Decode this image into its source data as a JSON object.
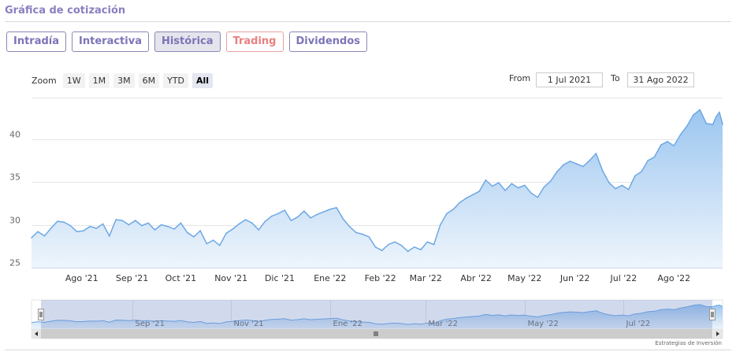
{
  "header": {
    "title": "Gráfica de cotización"
  },
  "tabs": [
    {
      "label": "Intradía"
    },
    {
      "label": "Interactiva"
    },
    {
      "label": "Histórica",
      "active": true
    },
    {
      "label": "Trading"
    },
    {
      "label": "Dividendos"
    }
  ],
  "zoom": {
    "label": "Zoom",
    "buttons": [
      "1W",
      "1M",
      "3M",
      "6M",
      "YTD",
      "All"
    ],
    "selected": "All"
  },
  "range": {
    "from_label": "From",
    "from_value": "1 Jul 2021",
    "to_label": "To",
    "to_value": "31 Ago 2022"
  },
  "colors": {
    "line": "#6ea8e4",
    "fill_top": "#9cc6f0",
    "fill_bottom": "#eef5fc",
    "navigator_mask": "rgba(102,133,194,0.3)"
  },
  "credit": "Estrategias de Inversión",
  "chart_data": {
    "type": "area",
    "title": "",
    "xlabel": "",
    "ylabel": "",
    "ylim": [
      25,
      44
    ],
    "yticks": [
      25,
      30,
      35,
      40
    ],
    "x_range": [
      "2021-07-01",
      "2022-08-31"
    ],
    "month_ticks": [
      {
        "label": "Ago '21",
        "date": "2021-08-01"
      },
      {
        "label": "Sep '21",
        "date": "2021-09-01"
      },
      {
        "label": "Oct '21",
        "date": "2021-10-01"
      },
      {
        "label": "Nov '21",
        "date": "2021-11-01"
      },
      {
        "label": "Dic '21",
        "date": "2021-12-01"
      },
      {
        "label": "Ene '22",
        "date": "2022-01-01"
      },
      {
        "label": "Feb '22",
        "date": "2022-02-01"
      },
      {
        "label": "Mar '22",
        "date": "2022-03-01"
      },
      {
        "label": "Abr '22",
        "date": "2022-04-01"
      },
      {
        "label": "May '22",
        "date": "2022-05-01"
      },
      {
        "label": "Jun '22",
        "date": "2022-06-01"
      },
      {
        "label": "Jul '22",
        "date": "2022-07-01"
      },
      {
        "label": "Ago '22",
        "date": "2022-08-01"
      }
    ],
    "navigator_ticks": [
      {
        "label": "Sep '21",
        "date": "2021-09-01"
      },
      {
        "label": "Nov '21",
        "date": "2021-11-01"
      },
      {
        "label": "Ene '22",
        "date": "2022-01-01"
      },
      {
        "label": "Mar '22",
        "date": "2022-03-01"
      },
      {
        "label": "May '22",
        "date": "2022-05-01"
      },
      {
        "label": "Jul '22",
        "date": "2022-07-01"
      }
    ],
    "series": [
      {
        "points": [
          [
            "2021-07-01",
            28.5
          ],
          [
            "2021-07-05",
            29.2
          ],
          [
            "2021-07-09",
            28.7
          ],
          [
            "2021-07-13",
            29.6
          ],
          [
            "2021-07-17",
            30.4
          ],
          [
            "2021-07-21",
            30.3
          ],
          [
            "2021-07-25",
            29.9
          ],
          [
            "2021-07-29",
            29.2
          ],
          [
            "2021-08-02",
            29.3
          ],
          [
            "2021-08-06",
            29.8
          ],
          [
            "2021-08-10",
            29.6
          ],
          [
            "2021-08-14",
            30.1
          ],
          [
            "2021-08-18",
            28.7
          ],
          [
            "2021-08-22",
            30.6
          ],
          [
            "2021-08-26",
            30.5
          ],
          [
            "2021-08-30",
            30.0
          ],
          [
            "2021-09-03",
            30.5
          ],
          [
            "2021-09-07",
            29.9
          ],
          [
            "2021-09-11",
            30.2
          ],
          [
            "2021-09-15",
            29.4
          ],
          [
            "2021-09-19",
            30.0
          ],
          [
            "2021-09-23",
            29.8
          ],
          [
            "2021-09-27",
            29.5
          ],
          [
            "2021-10-01",
            30.2
          ],
          [
            "2021-10-05",
            29.1
          ],
          [
            "2021-10-09",
            28.6
          ],
          [
            "2021-10-13",
            29.3
          ],
          [
            "2021-10-17",
            27.8
          ],
          [
            "2021-10-21",
            28.2
          ],
          [
            "2021-10-25",
            27.6
          ],
          [
            "2021-10-29",
            29.0
          ],
          [
            "2021-11-02",
            29.5
          ],
          [
            "2021-11-06",
            30.1
          ],
          [
            "2021-11-10",
            30.6
          ],
          [
            "2021-11-14",
            30.2
          ],
          [
            "2021-11-18",
            29.4
          ],
          [
            "2021-11-22",
            30.4
          ],
          [
            "2021-11-26",
            31.0
          ],
          [
            "2021-11-30",
            31.3
          ],
          [
            "2021-12-04",
            31.7
          ],
          [
            "2021-12-08",
            30.5
          ],
          [
            "2021-12-12",
            30.9
          ],
          [
            "2021-12-16",
            31.6
          ],
          [
            "2021-12-20",
            30.8
          ],
          [
            "2021-12-24",
            31.2
          ],
          [
            "2021-12-28",
            31.5
          ],
          [
            "2022-01-01",
            31.8
          ],
          [
            "2022-01-05",
            32.0
          ],
          [
            "2022-01-09",
            30.7
          ],
          [
            "2022-01-13",
            29.8
          ],
          [
            "2022-01-17",
            29.1
          ],
          [
            "2022-01-21",
            28.9
          ],
          [
            "2022-01-25",
            28.6
          ],
          [
            "2022-01-29",
            27.4
          ],
          [
            "2022-02-02",
            27.0
          ],
          [
            "2022-02-06",
            27.7
          ],
          [
            "2022-02-10",
            28.0
          ],
          [
            "2022-02-14",
            27.6
          ],
          [
            "2022-02-18",
            26.9
          ],
          [
            "2022-02-22",
            27.4
          ],
          [
            "2022-02-26",
            27.1
          ],
          [
            "2022-03-02",
            28.0
          ],
          [
            "2022-03-06",
            27.7
          ],
          [
            "2022-03-10",
            30.0
          ],
          [
            "2022-03-14",
            31.3
          ],
          [
            "2022-03-18",
            31.8
          ],
          [
            "2022-03-22",
            32.6
          ],
          [
            "2022-03-26",
            33.1
          ],
          [
            "2022-03-30",
            33.5
          ],
          [
            "2022-04-03",
            33.9
          ],
          [
            "2022-04-07",
            35.2
          ],
          [
            "2022-04-11",
            34.5
          ],
          [
            "2022-04-15",
            34.9
          ],
          [
            "2022-04-19",
            34.0
          ],
          [
            "2022-04-23",
            34.8
          ],
          [
            "2022-04-27",
            34.3
          ],
          [
            "2022-05-01",
            34.6
          ],
          [
            "2022-05-05",
            33.7
          ],
          [
            "2022-05-09",
            33.2
          ],
          [
            "2022-05-13",
            34.4
          ],
          [
            "2022-05-17",
            35.1
          ],
          [
            "2022-05-21",
            36.2
          ],
          [
            "2022-05-25",
            37.0
          ],
          [
            "2022-05-29",
            37.4
          ],
          [
            "2022-06-02",
            37.1
          ],
          [
            "2022-06-06",
            36.8
          ],
          [
            "2022-06-10",
            37.5
          ],
          [
            "2022-06-14",
            38.3
          ],
          [
            "2022-06-18",
            36.3
          ],
          [
            "2022-06-22",
            34.9
          ],
          [
            "2022-06-26",
            34.2
          ],
          [
            "2022-06-30",
            34.6
          ],
          [
            "2022-07-04",
            34.1
          ],
          [
            "2022-07-08",
            35.7
          ],
          [
            "2022-07-12",
            36.2
          ],
          [
            "2022-07-16",
            37.5
          ],
          [
            "2022-07-20",
            37.9
          ],
          [
            "2022-07-24",
            39.3
          ],
          [
            "2022-07-28",
            39.7
          ],
          [
            "2022-08-01",
            39.2
          ],
          [
            "2022-08-05",
            40.5
          ],
          [
            "2022-08-09",
            41.5
          ],
          [
            "2022-08-13",
            42.8
          ],
          [
            "2022-08-17",
            43.4
          ],
          [
            "2022-08-21",
            41.8
          ],
          [
            "2022-08-25",
            41.7
          ],
          [
            "2022-08-27",
            42.6
          ],
          [
            "2022-08-29",
            43.1
          ],
          [
            "2022-08-31",
            41.7
          ]
        ]
      }
    ]
  }
}
